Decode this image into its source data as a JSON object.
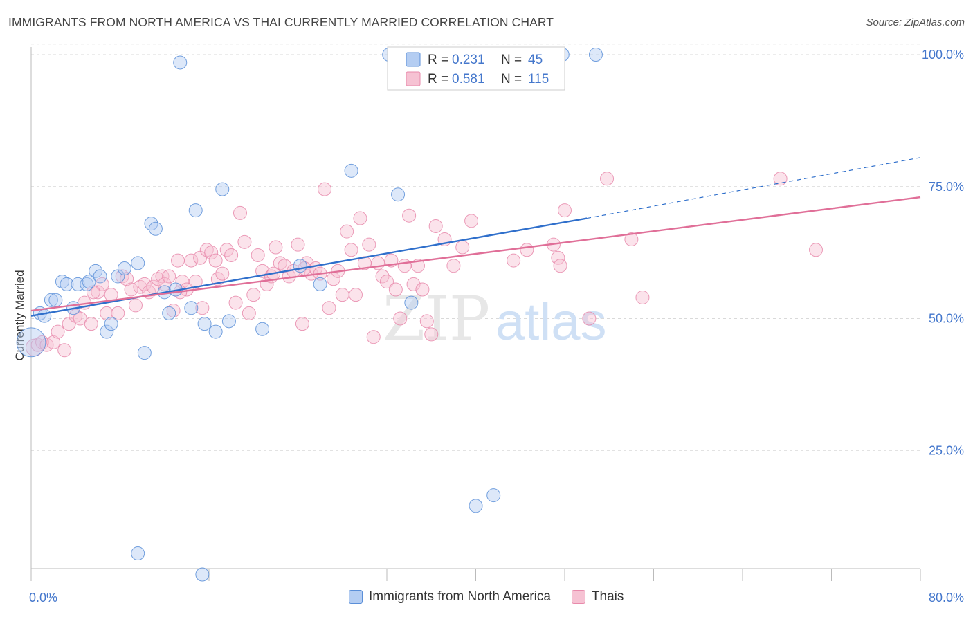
{
  "title": "IMMIGRANTS FROM NORTH AMERICA VS THAI CURRENTLY MARRIED CORRELATION CHART",
  "source": "Source: ZipAtlas.com",
  "watermark": "ZIPatlas",
  "colors": {
    "blue_fill": "#b4cdf2",
    "blue_stroke": "#5b8fd8",
    "blue_line": "#2f6fcb",
    "pink_fill": "#f6c2d3",
    "pink_stroke": "#e88aab",
    "pink_line": "#e06f98",
    "axis_text": "#4477cc",
    "grid": "#d9d9d9"
  },
  "legend_box": {
    "rows": [
      {
        "r_label": "R =",
        "r_value": "0.231",
        "n_label": "N =",
        "n_value": "45"
      },
      {
        "r_label": "R =",
        "r_value": "0.581",
        "n_label": "N =",
        "n_value": "115"
      }
    ]
  },
  "chart_data": {
    "type": "scatter",
    "xlabel": "",
    "ylabel": "Currently Married",
    "xlim": [
      0,
      80
    ],
    "ylim": [
      0,
      105
    ],
    "x_tick_labels": [
      {
        "value": 0,
        "label": "0.0%"
      },
      {
        "value": 80,
        "label": "80.0%"
      }
    ],
    "y_tick_labels": [
      {
        "value": 100,
        "label": "100.0%"
      },
      {
        "value": 75,
        "label": "75.0%"
      },
      {
        "value": 50,
        "label": "50.0%"
      },
      {
        "value": 25,
        "label": "25.0%"
      }
    ],
    "x_minor_ticks": [
      0,
      8,
      16,
      24,
      32,
      40,
      48,
      56,
      64,
      72,
      80
    ],
    "grid": true,
    "legend_position": "top-center",
    "series": [
      {
        "name": "Immigrants from North America",
        "color": "blue",
        "trend": {
          "x0": 0,
          "y0": 50.5,
          "x1": 50,
          "y1": 69,
          "dashed_to_x": 80,
          "dashed_to_y": 80.5
        },
        "points": [
          [
            0.0,
            45.5,
            2.2
          ],
          [
            0.8,
            51,
            1
          ],
          [
            1.2,
            50.5,
            1
          ],
          [
            1.8,
            53.5,
            1
          ],
          [
            2.2,
            53.5,
            1
          ],
          [
            2.8,
            57,
            1
          ],
          [
            3.2,
            56.5,
            1
          ],
          [
            3.8,
            52,
            1
          ],
          [
            4.2,
            56.5,
            1
          ],
          [
            5.0,
            56.5,
            1
          ],
          [
            5.2,
            57,
            1
          ],
          [
            5.8,
            59,
            1
          ],
          [
            6.2,
            58,
            1
          ],
          [
            6.8,
            47.5,
            1
          ],
          [
            7.2,
            49,
            1
          ],
          [
            7.8,
            58,
            1
          ],
          [
            8.4,
            59.5,
            1
          ],
          [
            9.6,
            60.5,
            1
          ],
          [
            10.2,
            43.5,
            1
          ],
          [
            10.8,
            68,
            1
          ],
          [
            11.2,
            67,
            1
          ],
          [
            12.0,
            55,
            1
          ],
          [
            12.4,
            51,
            1
          ],
          [
            13.0,
            55.5,
            1
          ],
          [
            13.4,
            98.5,
            1
          ],
          [
            14.4,
            52,
            1
          ],
          [
            14.8,
            70.5,
            1
          ],
          [
            15.6,
            49,
            1
          ],
          [
            16.6,
            47.5,
            1
          ],
          [
            17.2,
            74.5,
            1
          ],
          [
            17.8,
            49.5,
            1
          ],
          [
            20.8,
            48,
            1
          ],
          [
            24.2,
            60,
            1
          ],
          [
            26.0,
            56.5,
            1
          ],
          [
            28.8,
            78,
            1
          ],
          [
            32.2,
            100,
            1
          ],
          [
            33.0,
            73.5,
            1
          ],
          [
            34.2,
            53,
            1
          ],
          [
            40.0,
            14.5,
            1
          ],
          [
            41.6,
            16.5,
            1
          ],
          [
            47.8,
            100,
            1
          ],
          [
            50.8,
            100,
            1
          ],
          [
            9.6,
            5.5,
            1
          ],
          [
            15.4,
            1.5,
            1
          ]
        ]
      },
      {
        "name": "Thais",
        "color": "pink",
        "trend": {
          "x0": 0,
          "y0": 51.5,
          "x1": 80,
          "y1": 73
        },
        "points": [
          [
            0.3,
            44.5,
            1.3
          ],
          [
            0.6,
            45,
            1
          ],
          [
            1.0,
            45.5,
            1
          ],
          [
            1.4,
            45,
            1
          ],
          [
            2.0,
            45.5,
            1
          ],
          [
            2.4,
            47.5,
            1
          ],
          [
            3.0,
            44,
            1
          ],
          [
            3.4,
            49,
            1
          ],
          [
            4.0,
            50.5,
            1
          ],
          [
            4.4,
            50,
            1
          ],
          [
            4.8,
            53,
            1
          ],
          [
            5.4,
            49,
            1
          ],
          [
            6.0,
            55,
            1
          ],
          [
            6.4,
            56.5,
            1
          ],
          [
            6.8,
            51,
            1
          ],
          [
            7.2,
            54.5,
            1
          ],
          [
            7.8,
            51,
            1
          ],
          [
            8.2,
            58,
            1
          ],
          [
            8.6,
            57.5,
            1
          ],
          [
            9.0,
            55.5,
            1
          ],
          [
            9.4,
            52.5,
            1
          ],
          [
            9.8,
            56,
            1
          ],
          [
            10.2,
            56.5,
            1
          ],
          [
            10.6,
            55,
            1
          ],
          [
            11.0,
            56,
            1
          ],
          [
            11.4,
            57.5,
            1
          ],
          [
            11.8,
            58,
            1
          ],
          [
            12.0,
            56.5,
            1
          ],
          [
            12.4,
            58,
            1
          ],
          [
            12.8,
            51.5,
            1
          ],
          [
            13.2,
            61,
            1
          ],
          [
            13.6,
            57,
            1
          ],
          [
            14.0,
            55.5,
            1
          ],
          [
            14.4,
            61,
            1
          ],
          [
            14.8,
            57,
            1
          ],
          [
            15.2,
            61.5,
            1
          ],
          [
            15.4,
            52,
            1
          ],
          [
            15.8,
            63,
            1
          ],
          [
            16.2,
            62.5,
            1
          ],
          [
            16.6,
            61,
            1
          ],
          [
            16.8,
            57.5,
            1
          ],
          [
            17.2,
            58.5,
            1
          ],
          [
            17.6,
            63,
            1
          ],
          [
            18.0,
            62,
            1
          ],
          [
            18.4,
            53,
            1
          ],
          [
            18.8,
            70,
            1
          ],
          [
            19.2,
            64.5,
            1
          ],
          [
            19.6,
            51,
            1
          ],
          [
            20.0,
            54.5,
            1
          ],
          [
            20.4,
            62,
            1
          ],
          [
            20.8,
            59,
            1
          ],
          [
            21.2,
            56.5,
            1
          ],
          [
            21.6,
            58,
            1
          ],
          [
            22.0,
            63.5,
            1
          ],
          [
            22.4,
            60.5,
            1
          ],
          [
            22.8,
            60,
            1
          ],
          [
            23.2,
            58,
            1
          ],
          [
            23.6,
            59,
            1
          ],
          [
            24.0,
            64,
            1
          ],
          [
            24.4,
            49,
            1
          ],
          [
            24.8,
            60.5,
            1
          ],
          [
            25.2,
            58.5,
            1
          ],
          [
            25.6,
            59.5,
            1
          ],
          [
            26.0,
            58.5,
            1
          ],
          [
            26.4,
            74.5,
            1
          ],
          [
            26.8,
            52,
            1
          ],
          [
            27.2,
            57.5,
            1
          ],
          [
            27.6,
            59,
            1
          ],
          [
            28.0,
            54.5,
            1
          ],
          [
            28.4,
            66.5,
            1
          ],
          [
            28.8,
            63,
            1
          ],
          [
            29.2,
            54.5,
            1
          ],
          [
            29.6,
            69,
            1
          ],
          [
            30.0,
            60.5,
            1
          ],
          [
            30.4,
            64,
            1
          ],
          [
            30.8,
            46.5,
            1
          ],
          [
            31.2,
            60.5,
            1
          ],
          [
            31.6,
            58,
            1
          ],
          [
            32.0,
            57,
            1
          ],
          [
            32.4,
            61,
            1
          ],
          [
            32.8,
            55.5,
            1
          ],
          [
            33.2,
            50,
            1
          ],
          [
            33.6,
            60,
            1
          ],
          [
            34.0,
            69.5,
            1
          ],
          [
            34.4,
            56.5,
            1
          ],
          [
            34.8,
            60,
            1
          ],
          [
            35.2,
            55.5,
            1
          ],
          [
            35.6,
            49.5,
            1
          ],
          [
            36.0,
            47,
            1
          ],
          [
            36.4,
            67.5,
            1
          ],
          [
            37.2,
            65,
            1
          ],
          [
            38.0,
            60,
            1
          ],
          [
            38.8,
            63.5,
            1
          ],
          [
            39.6,
            68.5,
            1
          ],
          [
            43.4,
            61,
            1
          ],
          [
            44.6,
            63,
            1
          ],
          [
            47.0,
            64,
            1
          ],
          [
            47.4,
            61.5,
            1
          ],
          [
            47.6,
            60,
            1
          ],
          [
            48.0,
            70.5,
            1
          ],
          [
            50.2,
            50,
            1
          ],
          [
            51.8,
            76.5,
            1
          ],
          [
            54.0,
            65,
            1
          ],
          [
            55.0,
            54,
            1
          ],
          [
            67.4,
            76.5,
            1
          ],
          [
            70.6,
            63,
            1
          ],
          [
            24.6,
            59.5,
            1
          ],
          [
            21.8,
            58.5,
            1
          ],
          [
            13.4,
            55,
            1
          ],
          [
            5.6,
            55,
            1
          ]
        ]
      }
    ]
  }
}
